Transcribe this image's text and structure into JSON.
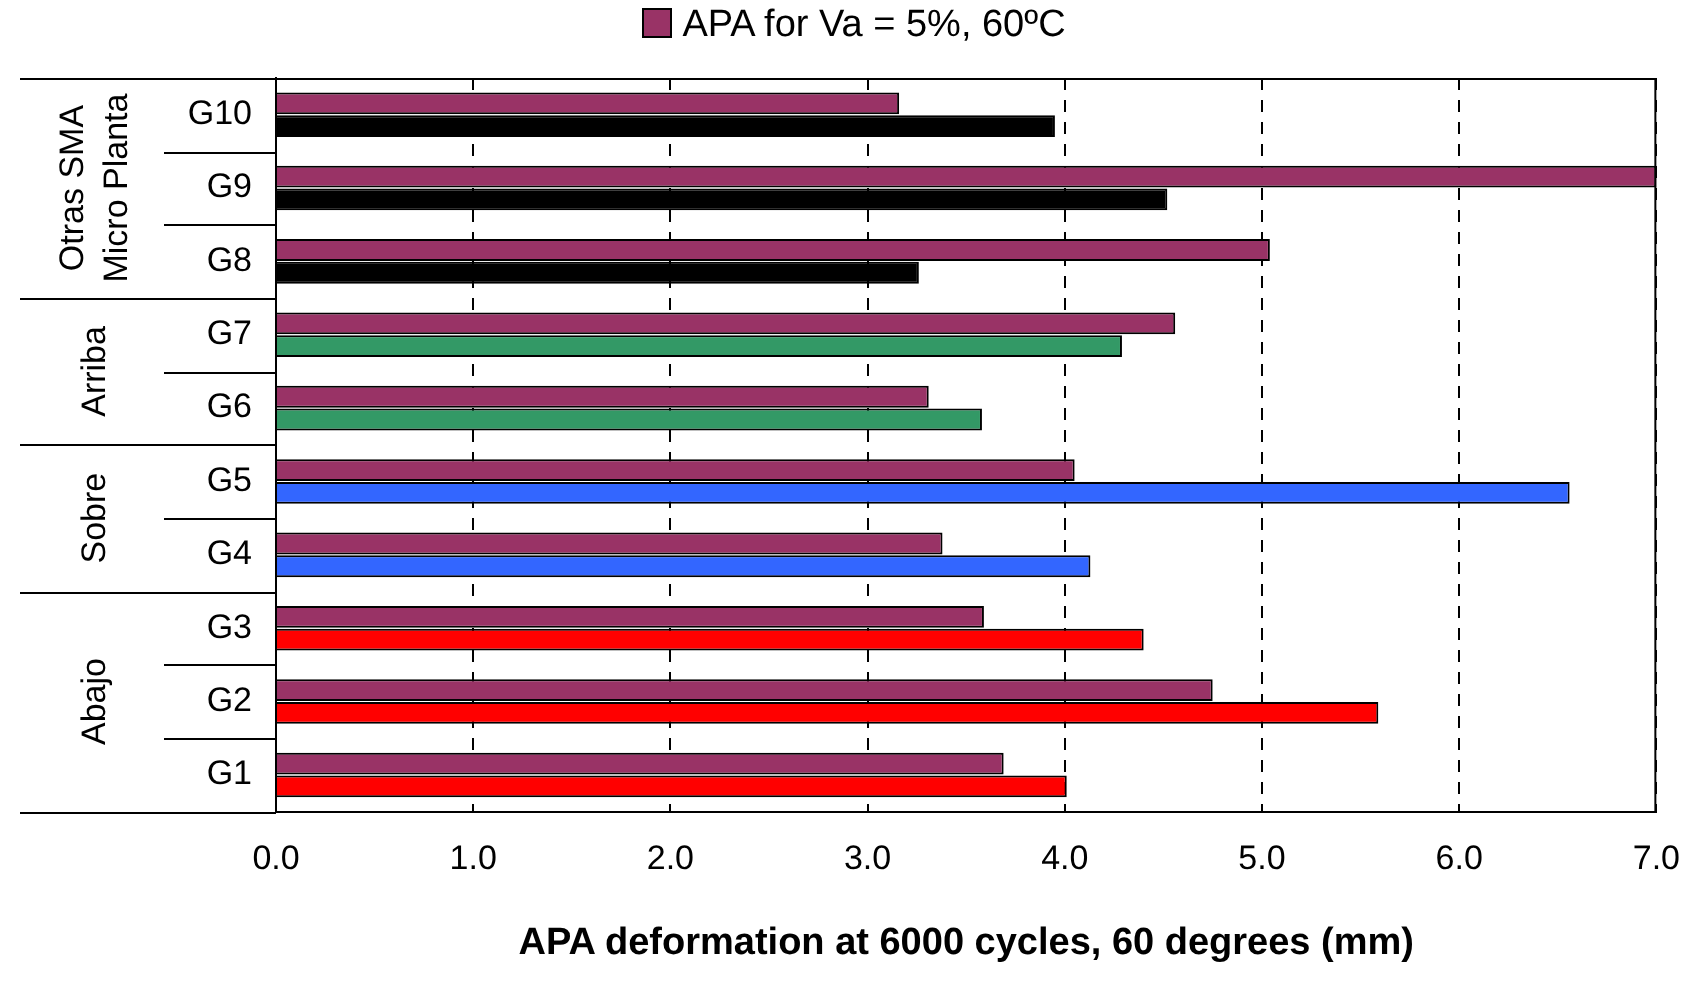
{
  "chart_data": {
    "type": "bar",
    "orientation": "horizontal",
    "xlabel": "APA deformation at 6000 cycles, 60 degrees (mm)",
    "categories": [
      "G10",
      "G9",
      "G8",
      "G7",
      "G6",
      "G5",
      "G4",
      "G3",
      "G2",
      "G1"
    ],
    "series": [
      {
        "name": "APA for Va = 5%, 60ºC",
        "color": "#993366",
        "values": [
          3.16,
          7.0,
          5.04,
          4.56,
          3.31,
          4.05,
          3.38,
          3.59,
          4.75,
          3.69
        ]
      },
      {
        "colors": [
          "#000000",
          "#000000",
          "#000000",
          "#339966",
          "#339966",
          "#3366ff",
          "#3366ff",
          "#ff0000",
          "#ff0000",
          "#ff0000"
        ],
        "values": [
          3.95,
          4.52,
          3.26,
          4.29,
          3.58,
          6.56,
          4.13,
          4.4,
          5.59,
          4.01
        ]
      }
    ],
    "xlim": [
      0,
      7
    ],
    "xticks": [
      {
        "value": 0,
        "label": "0.0"
      },
      {
        "value": 1,
        "label": "1.0"
      },
      {
        "value": 2,
        "label": "2.0"
      },
      {
        "value": 3,
        "label": "3.0"
      },
      {
        "value": 4,
        "label": "4.0"
      },
      {
        "value": 5,
        "label": "5.0"
      },
      {
        "value": 6,
        "label": "6.0"
      },
      {
        "value": 7,
        "label": "7.0"
      }
    ],
    "grid": "x",
    "legend": "top",
    "annotations": [
      "Otras SMA\nMicro Planta",
      "Arriba",
      "Sobre",
      "Abajo"
    ]
  }
}
